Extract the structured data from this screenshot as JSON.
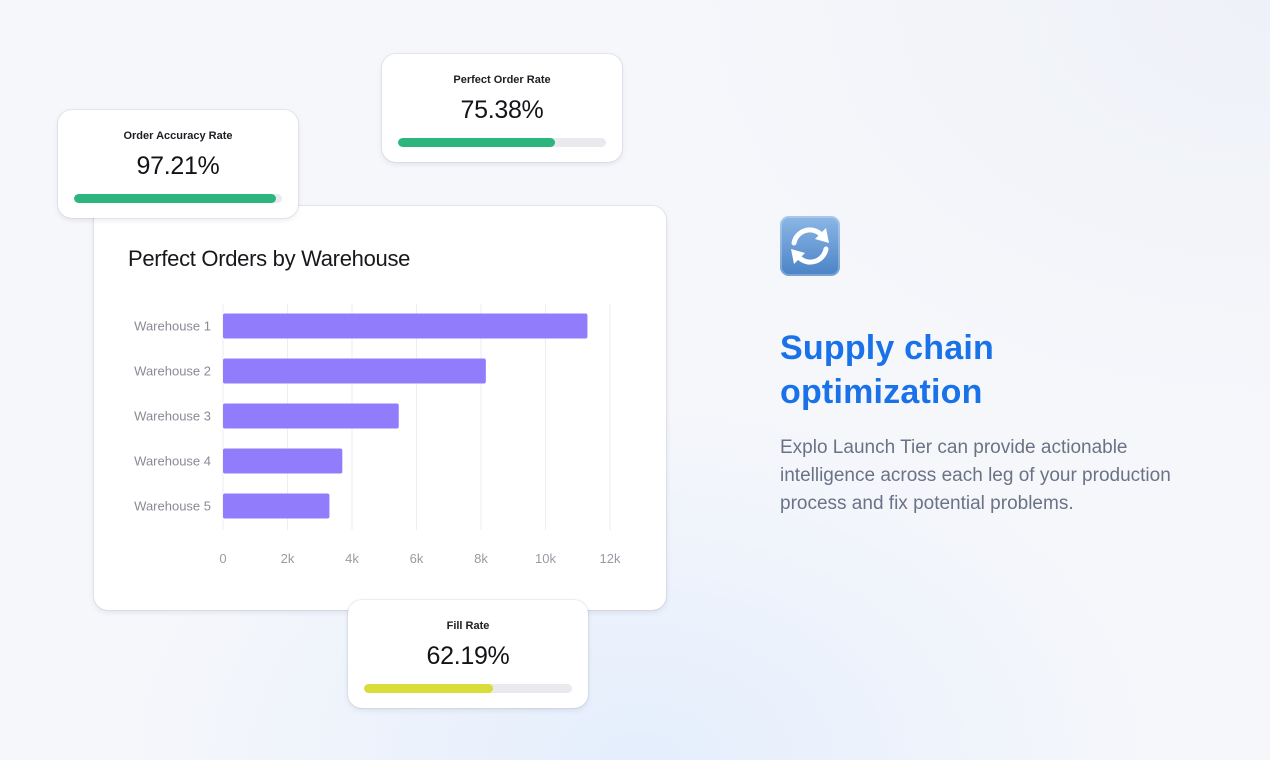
{
  "kpis": {
    "accuracy": {
      "title": "Order Accuracy Rate",
      "value": "97.21%",
      "progress": 0.9721,
      "color": "#2cb67d"
    },
    "perfect": {
      "title": "Perfect Order Rate",
      "value": "75.38%",
      "progress": 0.7538,
      "color": "#2cb67d"
    },
    "fill": {
      "title": "Fill Rate",
      "value": "62.19%",
      "progress": 0.6219,
      "color": "#d8dd3a"
    }
  },
  "chart_data": {
    "type": "bar",
    "orientation": "horizontal",
    "title": "Perfect Orders by Warehouse",
    "categories": [
      "Warehouse 1",
      "Warehouse 2",
      "Warehouse 3",
      "Warehouse 4",
      "Warehouse 5"
    ],
    "values": [
      11300,
      8150,
      5450,
      3700,
      3300
    ],
    "xlim": [
      0,
      12000
    ],
    "xticks": [
      0,
      2000,
      4000,
      6000,
      8000,
      10000,
      12000
    ],
    "xtick_labels": [
      "0",
      "2k",
      "4k",
      "6k",
      "8k",
      "10k",
      "12k"
    ],
    "grid": true,
    "bar_color": "#917dfc"
  },
  "feature": {
    "icon": "counterclockwise-arrows-icon",
    "title": "Supply chain optimization",
    "description": "Explo Launch Tier can provide actionable intelligence across each leg of your production process and fix potential problems."
  }
}
